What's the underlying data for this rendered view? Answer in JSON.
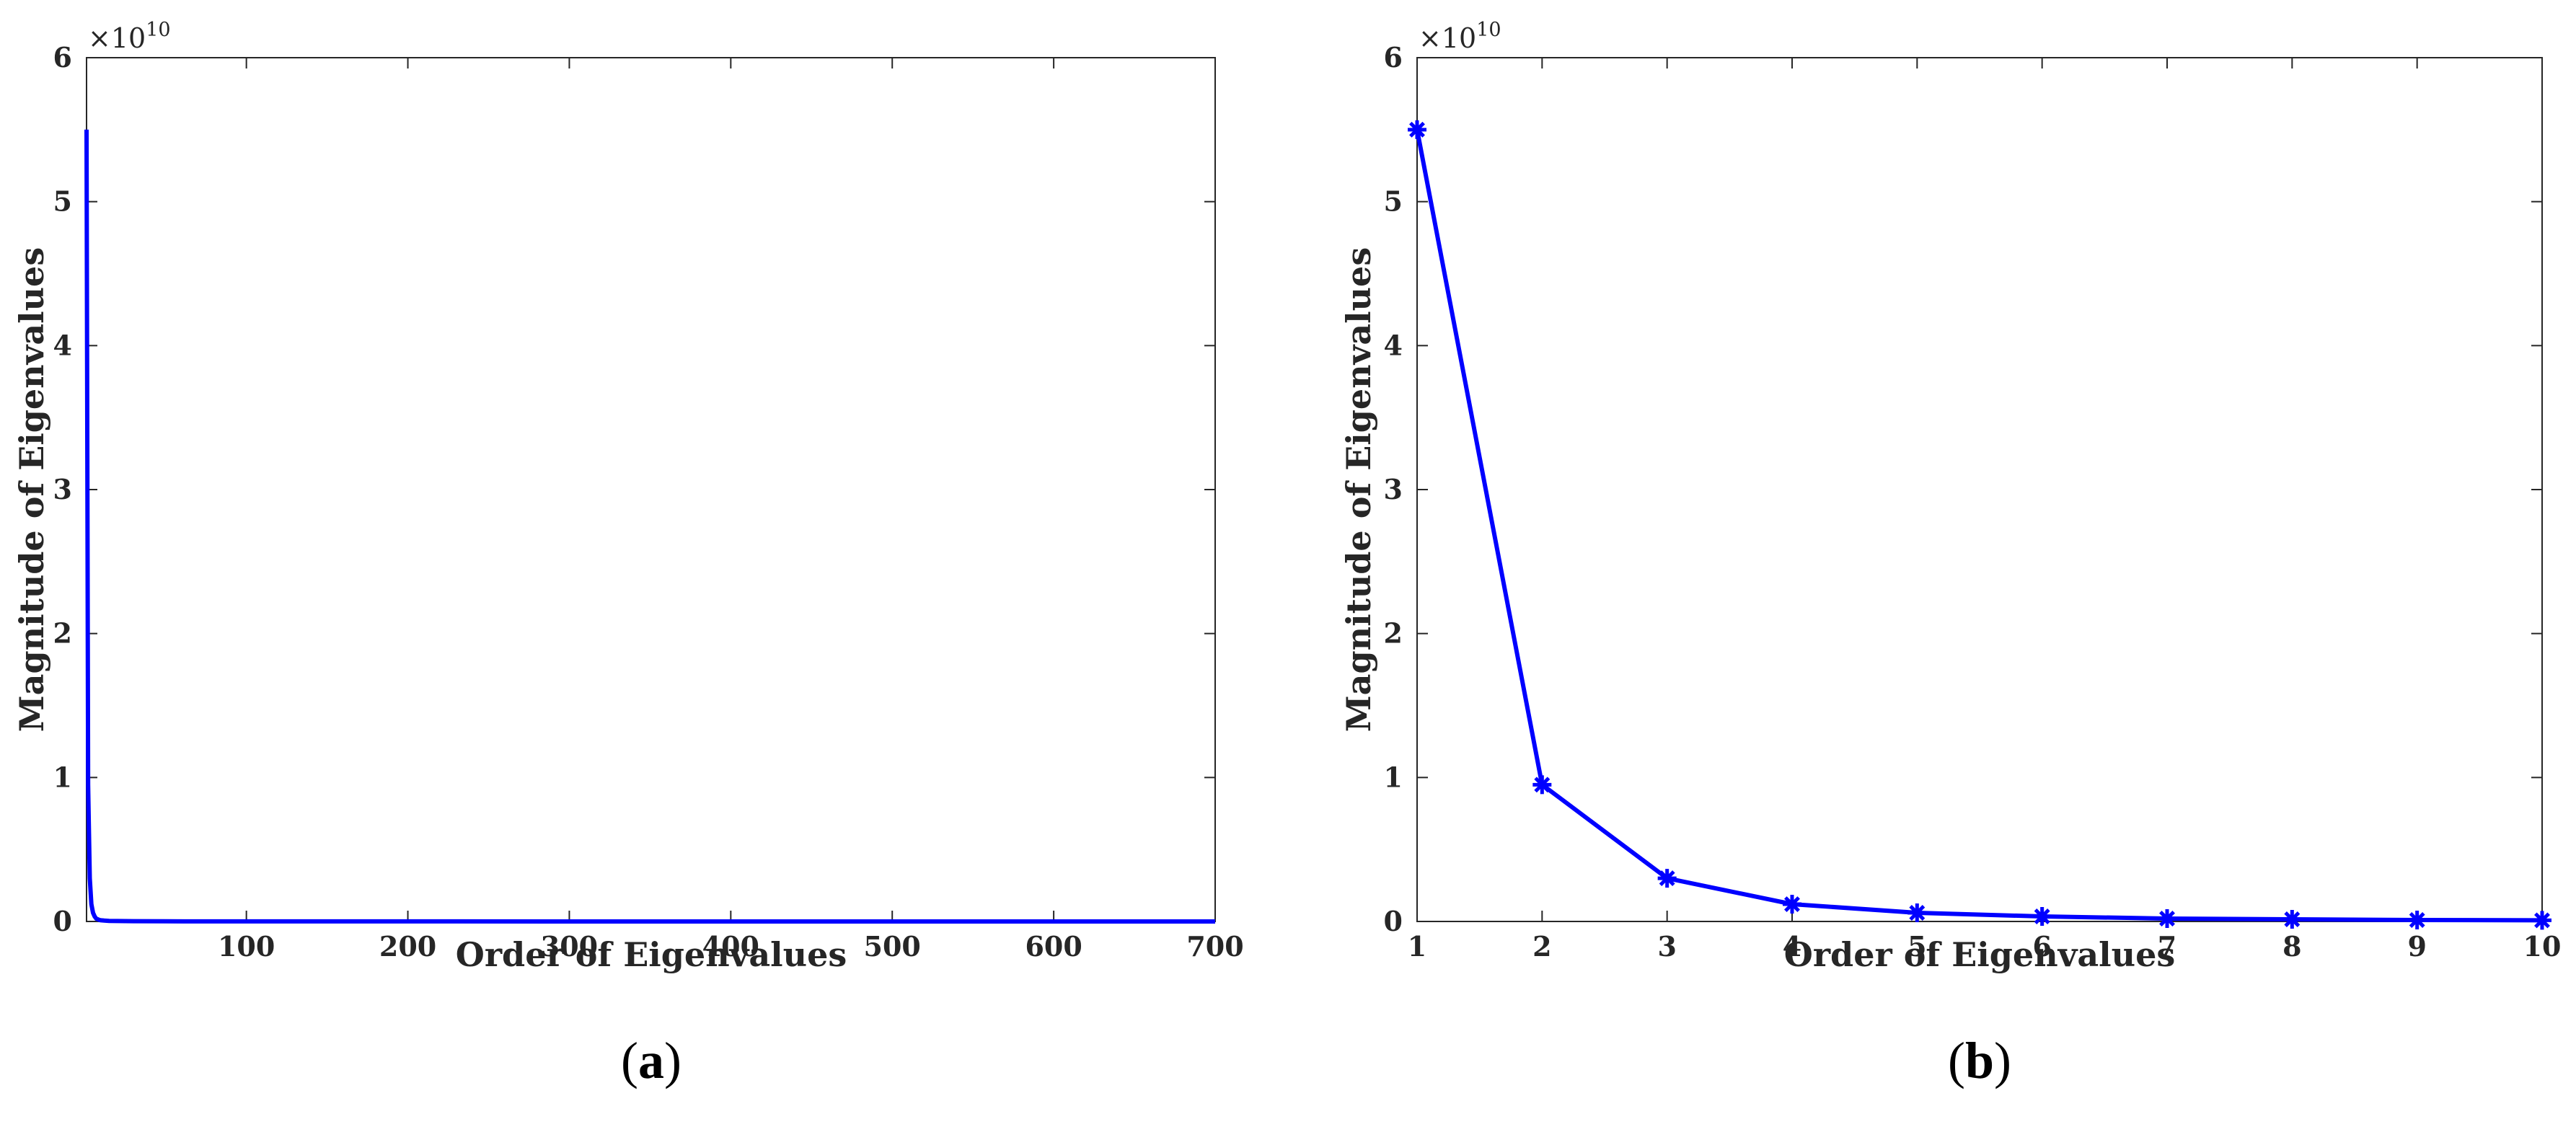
{
  "chart_data": [
    {
      "panel_label": "a",
      "type": "line",
      "xlabel": "Order of Eigenvalues",
      "ylabel": "Magnitude of Eigenvalues",
      "y_multiplier": "×10",
      "y_multiplier_exp": "10",
      "xlim": [
        1,
        700
      ],
      "ylim": [
        0,
        6
      ],
      "xticks": [
        100,
        200,
        300,
        400,
        500,
        600,
        700
      ],
      "yticks": [
        0,
        1,
        2,
        3,
        4,
        5,
        6
      ],
      "markers": false,
      "grid": false,
      "line_color": "#0000ff",
      "series": [
        {
          "x": [
            1,
            2,
            3,
            4,
            5,
            6,
            7,
            8,
            9,
            10,
            12,
            15,
            20,
            30,
            50,
            100,
            200,
            300,
            400,
            500,
            600,
            700
          ],
          "values": [
            5.5,
            0.95,
            0.3,
            0.12,
            0.06,
            0.035,
            0.02,
            0.015,
            0.01,
            0.008,
            0.006,
            0.004,
            0.003,
            0.002,
            0.001,
            0.0005,
            0.0003,
            0.0002,
            0.0001,
            0.0001,
            0.0001,
            0.0001
          ]
        }
      ]
    },
    {
      "panel_label": "b",
      "type": "line",
      "xlabel": "Order of Eigenvalues",
      "ylabel": "Magnitude of Eigenvalues",
      "y_multiplier": "×10",
      "y_multiplier_exp": "10",
      "xlim": [
        1,
        10
      ],
      "ylim": [
        0,
        6
      ],
      "xticks": [
        1,
        2,
        3,
        4,
        5,
        6,
        7,
        8,
        9,
        10
      ],
      "yticks": [
        0,
        1,
        2,
        3,
        4,
        5,
        6
      ],
      "markers": true,
      "grid": false,
      "line_color": "#0000ff",
      "series": [
        {
          "x": [
            1,
            2,
            3,
            4,
            5,
            6,
            7,
            8,
            9,
            10
          ],
          "values": [
            5.5,
            0.95,
            0.3,
            0.12,
            0.06,
            0.035,
            0.02,
            0.015,
            0.01,
            0.008
          ]
        }
      ]
    }
  ],
  "captions": {
    "open": "(",
    "close": ")"
  }
}
